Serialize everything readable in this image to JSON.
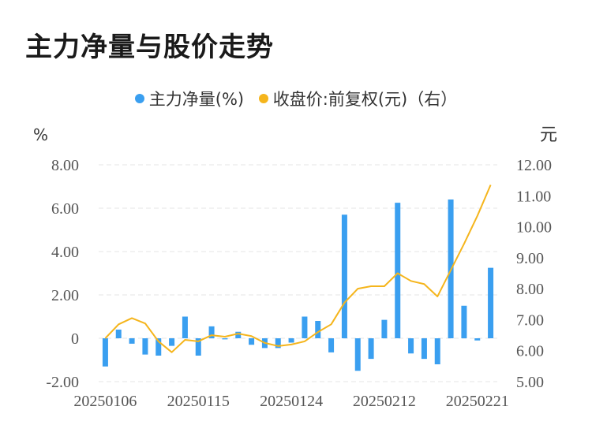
{
  "title": "主力净量与股价走势",
  "legend": {
    "net_label": "主力净量(%)",
    "price_label": "收盘价:前复权(元)（右）"
  },
  "colors": {
    "bar": "#3a9ff0",
    "line": "#f5b51c",
    "grid": "#e6e6e6",
    "tick": "#555555"
  },
  "chart_data": {
    "type": "bar",
    "title": "主力净量与股价走势",
    "left_unit": "%",
    "right_unit": "元",
    "left_axis": {
      "ticks": [
        "8.00",
        "6.00",
        "4.00",
        "2.00",
        "0",
        "-2.00"
      ],
      "tick_values": [
        8,
        6,
        4,
        2,
        0,
        -2
      ],
      "ylim": [
        -2,
        8
      ]
    },
    "right_axis": {
      "ticks": [
        "12.00",
        "11.00",
        "10.00",
        "9.00",
        "8.00",
        "7.00",
        "6.00",
        "5.00"
      ],
      "tick_values": [
        12,
        11,
        10,
        9,
        8,
        7,
        6,
        5
      ],
      "ylim": [
        5,
        12
      ]
    },
    "x_tick_labels": [
      "20250106",
      "20250115",
      "20250124",
      "20250212",
      "20250221"
    ],
    "x_tick_indices": [
      0,
      7,
      14,
      21,
      28
    ],
    "grid": true,
    "legend_position": "top-center",
    "series": [
      {
        "name": "主力净量(%)",
        "type": "bar",
        "axis": "left",
        "values": [
          -1.3,
          0.4,
          -0.25,
          -0.75,
          -0.8,
          -0.35,
          1.0,
          -0.8,
          0.55,
          -0.05,
          0.3,
          -0.3,
          -0.45,
          -0.45,
          -0.2,
          1.0,
          0.8,
          -0.65,
          5.7,
          -1.5,
          -0.95,
          0.85,
          6.25,
          -0.7,
          -0.95,
          -1.2,
          6.4,
          1.5,
          -0.1,
          3.25
        ]
      },
      {
        "name": "收盘价:前复权(元)（右）",
        "type": "line",
        "axis": "right",
        "values": [
          6.4,
          6.85,
          7.05,
          6.88,
          6.3,
          5.95,
          6.35,
          6.3,
          6.5,
          6.45,
          6.55,
          6.47,
          6.25,
          6.15,
          6.2,
          6.3,
          6.6,
          6.85,
          7.55,
          8.0,
          8.08,
          8.08,
          8.5,
          8.25,
          8.15,
          7.75,
          8.6,
          9.45,
          10.35,
          11.35
        ]
      }
    ]
  }
}
